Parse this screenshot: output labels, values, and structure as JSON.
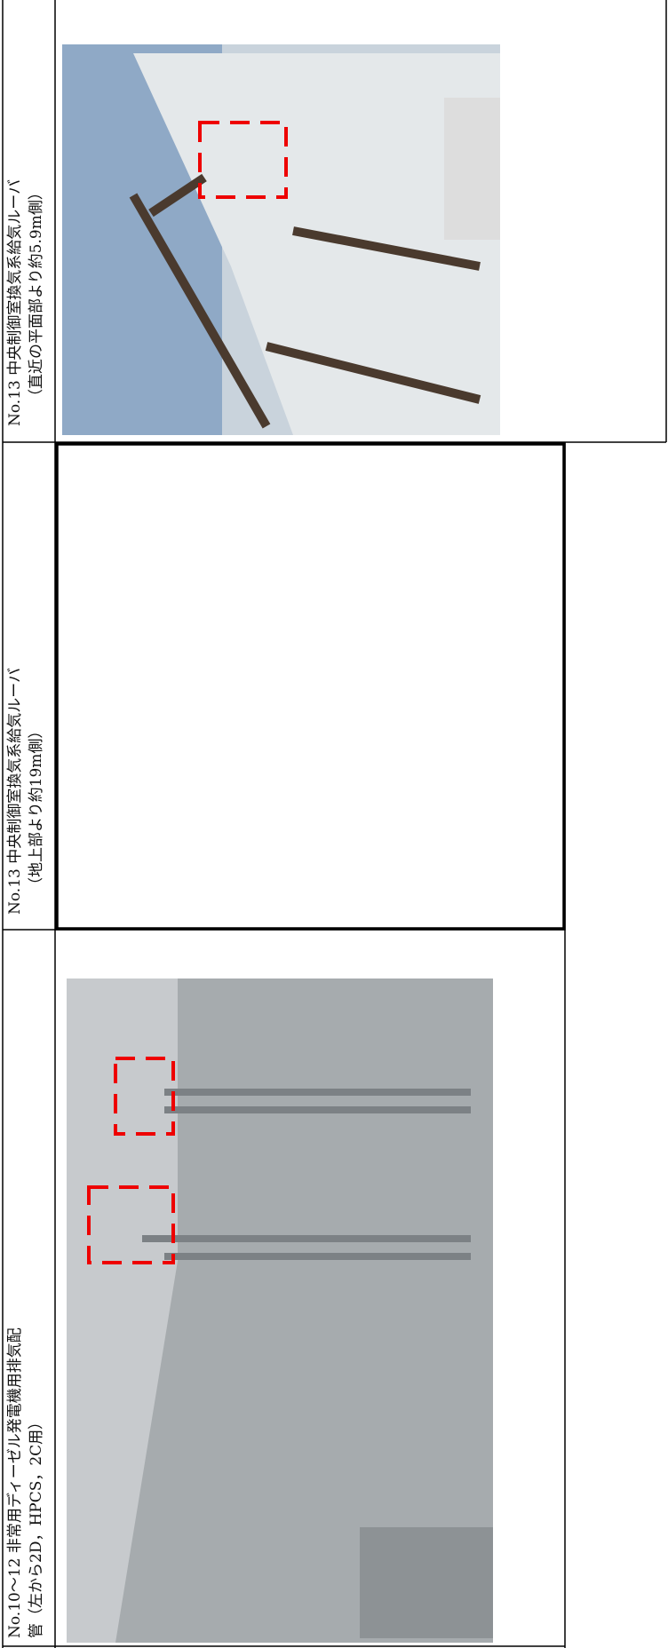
{
  "rows": [
    {
      "lines": [
        "No.13 中央制御室換気系給気ルーバ",
        "（直近の平面部より約5.9m側）"
      ]
    },
    {
      "lines": [
        "No.13 中央制御室換気系給気ルーバ",
        "（地上部より約19m側）"
      ]
    },
    {
      "lines": [
        "No.10～12 非常用ディーゼル発電機用排気配",
        "管（左から2D，HPCS，2C用）"
      ]
    }
  ]
}
